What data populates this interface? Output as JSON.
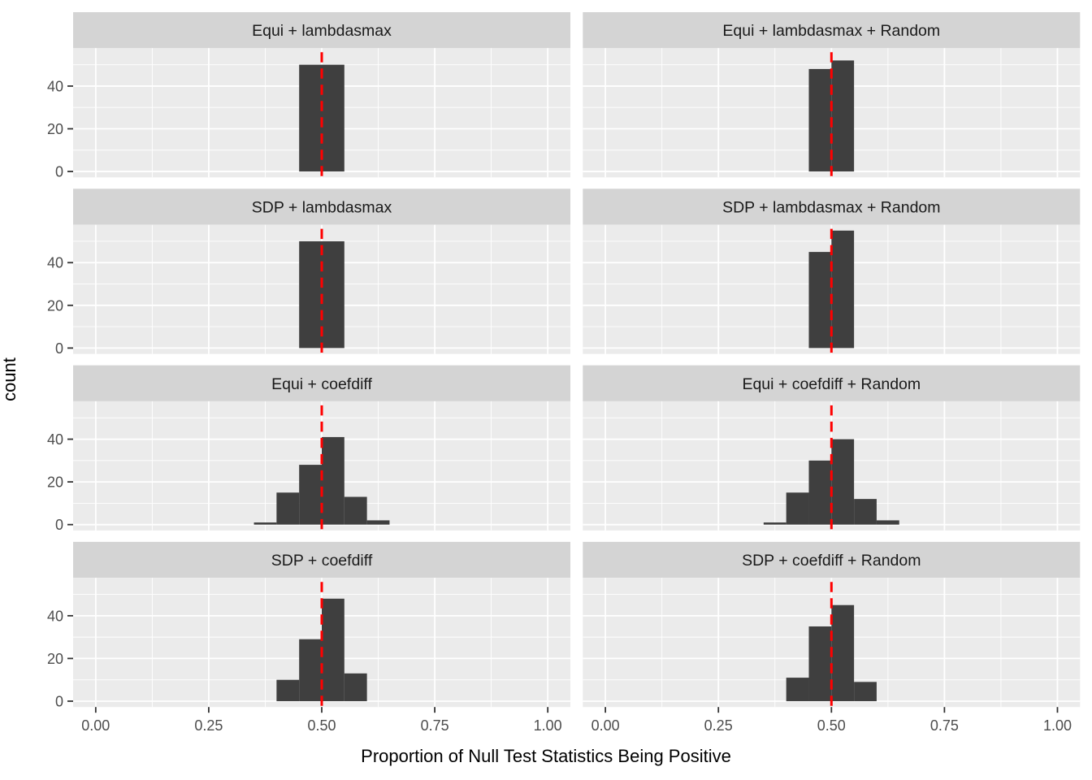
{
  "chart_data": {
    "type": "bar",
    "subtype": "faceted-histogram",
    "title": "",
    "xlabel": "Proportion of Null Test Statistics Being Positive",
    "ylabel": "count",
    "legend": "none",
    "grid": "on",
    "x_tick_labels": [
      "0.00",
      "0.25",
      "0.50",
      "0.75",
      "1.00"
    ],
    "x_tick_values": [
      0,
      0.25,
      0.5,
      0.75,
      1.0
    ],
    "x_minor_values": [
      0.125,
      0.375,
      0.625,
      0.875
    ],
    "y_tick_labels": [
      "0",
      "20",
      "40"
    ],
    "y_tick_values": [
      0,
      20,
      40
    ],
    "y_minor_values": [
      10,
      30,
      50
    ],
    "xlim": [
      -0.05,
      1.05
    ],
    "ylim": [
      -2.75,
      57.75
    ],
    "binwidth": 0.05,
    "reference_line_x": 0.5,
    "facets": [
      {
        "label": "Equi + lambdasmax",
        "row": 0,
        "col": 0,
        "bin_start": 0.45,
        "counts": [
          50,
          50
        ]
      },
      {
        "label": "Equi + lambdasmax + Random",
        "row": 0,
        "col": 1,
        "bin_start": 0.45,
        "counts": [
          48,
          52
        ]
      },
      {
        "label": "SDP + lambdasmax",
        "row": 1,
        "col": 0,
        "bin_start": 0.45,
        "counts": [
          50,
          50
        ]
      },
      {
        "label": "SDP + lambdasmax + Random",
        "row": 1,
        "col": 1,
        "bin_start": 0.45,
        "counts": [
          45,
          55
        ]
      },
      {
        "label": "Equi + coefdiff",
        "row": 2,
        "col": 0,
        "bin_start": 0.35,
        "counts": [
          1,
          15,
          28,
          41,
          13,
          2
        ]
      },
      {
        "label": "Equi + coefdiff + Random",
        "row": 2,
        "col": 1,
        "bin_start": 0.35,
        "counts": [
          1,
          15,
          30,
          40,
          12,
          2
        ]
      },
      {
        "label": "SDP + coefdiff",
        "row": 3,
        "col": 0,
        "bin_start": 0.4,
        "counts": [
          10,
          29,
          48,
          13
        ]
      },
      {
        "label": "SDP + coefdiff + Random",
        "row": 3,
        "col": 1,
        "bin_start": 0.4,
        "counts": [
          11,
          35,
          45,
          9
        ]
      }
    ],
    "colors": {
      "bar_fill": "#3F3F3F",
      "panel_bg": "#EBEBEB",
      "strip_bg": "#D4D4D4",
      "grid_line": "#FFFFFF",
      "reference_line": "#FF0000",
      "tick_mark": "#333333",
      "tick_label": "#4D4D4D",
      "strip_text": "#1A1A1A"
    }
  }
}
